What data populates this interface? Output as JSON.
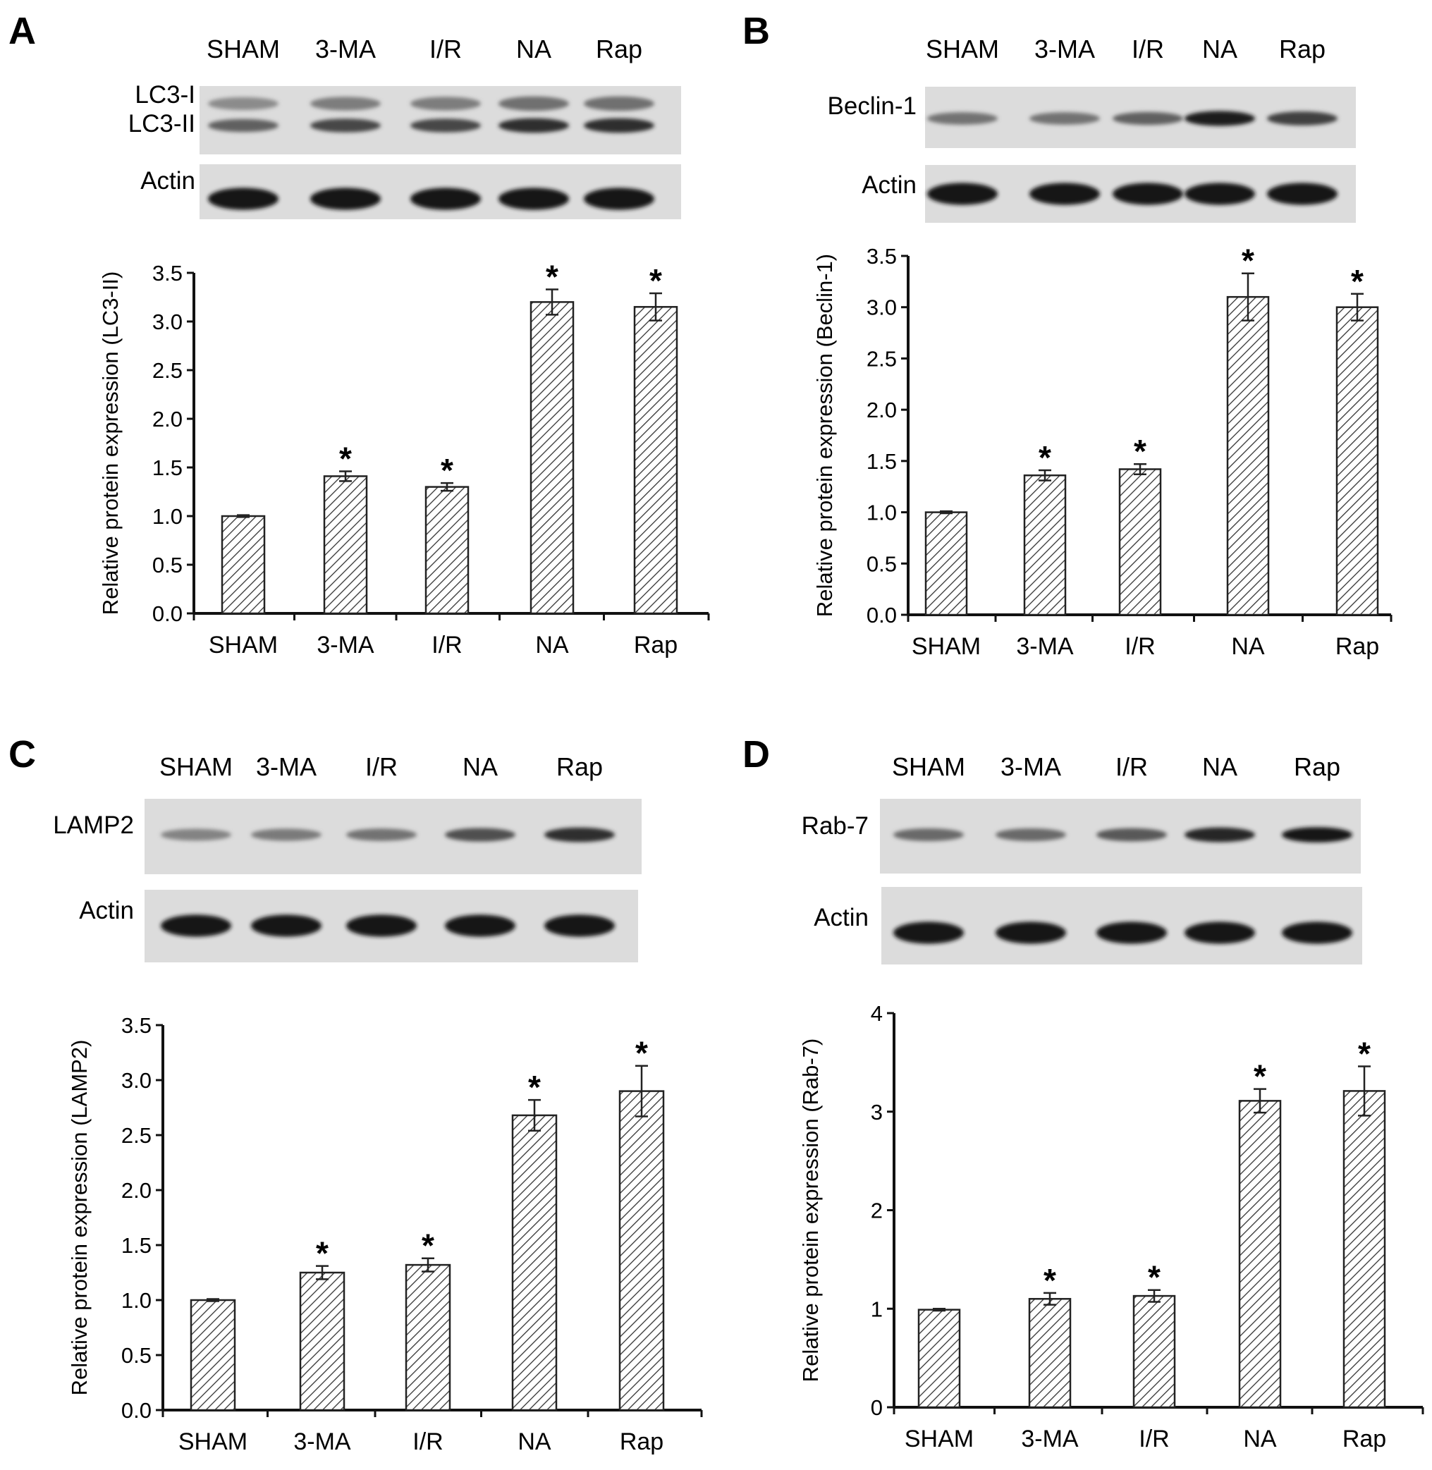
{
  "chart_data": [
    {
      "panel_label": "A",
      "type": "bar",
      "blot_lane_labels": [
        "SHAM",
        "3-MA",
        "I/R",
        "NA",
        "Rap"
      ],
      "blot_rows": [
        {
          "labels": [
            "LC3-I",
            "LC3-II"
          ],
          "intensity": [
            0.55,
            0.7,
            0.7,
            0.85,
            0.85
          ]
        },
        {
          "labels": [
            "Actin"
          ],
          "intensity": [
            1,
            1,
            1,
            1,
            1
          ]
        }
      ],
      "categories": [
        "SHAM",
        "3-MA",
        "I/R",
        "NA",
        "Rap"
      ],
      "values": [
        1.0,
        1.41,
        1.3,
        3.2,
        3.15
      ],
      "errors": [
        0.01,
        0.05,
        0.04,
        0.13,
        0.14
      ],
      "significance": [
        "",
        "*",
        "*",
        "*",
        "*"
      ],
      "ylabel": "Relative protein expression (LC3-II)",
      "ylim": [
        0,
        3.5
      ],
      "yticks": [
        "0.0",
        "0.5",
        "1.0",
        "1.5",
        "2.0",
        "2.5",
        "3.0",
        "3.5"
      ]
    },
    {
      "panel_label": "B",
      "type": "bar",
      "blot_lane_labels": [
        "SHAM",
        "3-MA",
        "I/R",
        "NA",
        "Rap"
      ],
      "blot_rows": [
        {
          "labels": [
            "Beclin-1"
          ],
          "intensity": [
            0.45,
            0.45,
            0.55,
            0.95,
            0.75
          ]
        },
        {
          "labels": [
            "Actin"
          ],
          "intensity": [
            1,
            1,
            1,
            1,
            1
          ]
        }
      ],
      "categories": [
        "SHAM",
        "3-MA",
        "I/R",
        "NA",
        "Rap"
      ],
      "values": [
        1.0,
        1.36,
        1.42,
        3.1,
        3.0
      ],
      "errors": [
        0.01,
        0.05,
        0.05,
        0.23,
        0.13
      ],
      "significance": [
        "",
        "*",
        "*",
        "*",
        "*"
      ],
      "ylabel": "Relative protein expression (Beclin-1)",
      "ylim": [
        0,
        3.5
      ],
      "yticks": [
        "0.0",
        "0.5",
        "1.0",
        "1.5",
        "2.0",
        "2.5",
        "3.0",
        "3.5"
      ]
    },
    {
      "panel_label": "C",
      "type": "bar",
      "blot_lane_labels": [
        "SHAM",
        "3-MA",
        "I/R",
        "NA",
        "Rap"
      ],
      "blot_rows": [
        {
          "labels": [
            "LAMP2"
          ],
          "intensity": [
            0.35,
            0.4,
            0.45,
            0.65,
            0.85
          ]
        },
        {
          "labels": [
            "Actin"
          ],
          "intensity": [
            1,
            1,
            1,
            1,
            1
          ]
        }
      ],
      "categories": [
        "SHAM",
        "3-MA",
        "I/R",
        "NA",
        "Rap"
      ],
      "values": [
        1.0,
        1.25,
        1.32,
        2.68,
        2.9
      ],
      "errors": [
        0.01,
        0.06,
        0.06,
        0.14,
        0.23
      ],
      "significance": [
        "",
        "*",
        "*",
        "*",
        "*"
      ],
      "ylabel": "Relative protein expression (LAMP2)",
      "ylim": [
        0,
        3.5
      ],
      "yticks": [
        "0.0",
        "0.5",
        "1.0",
        "1.5",
        "2.0",
        "2.5",
        "3.0",
        "3.5"
      ]
    },
    {
      "panel_label": "D",
      "type": "bar",
      "blot_lane_labels": [
        "SHAM",
        "3-MA",
        "I/R",
        "NA",
        "Rap"
      ],
      "blot_rows": [
        {
          "labels": [
            "Rab-7"
          ],
          "intensity": [
            0.5,
            0.5,
            0.6,
            0.9,
            1
          ]
        },
        {
          "labels": [
            "Actin"
          ],
          "intensity": [
            1,
            1,
            1,
            1,
            1
          ]
        }
      ],
      "categories": [
        "SHAM",
        "3-MA",
        "I/R",
        "NA",
        "Rap"
      ],
      "values": [
        0.99,
        1.1,
        1.13,
        3.11,
        3.21
      ],
      "errors": [
        0.01,
        0.06,
        0.06,
        0.12,
        0.25
      ],
      "significance": [
        "",
        "*",
        "*",
        "*",
        "*"
      ],
      "ylabel": "Relative protein expression (Rab-7)",
      "ylim": [
        0,
        4
      ],
      "yticks": [
        "0",
        "1",
        "2",
        "3",
        "4"
      ]
    }
  ]
}
